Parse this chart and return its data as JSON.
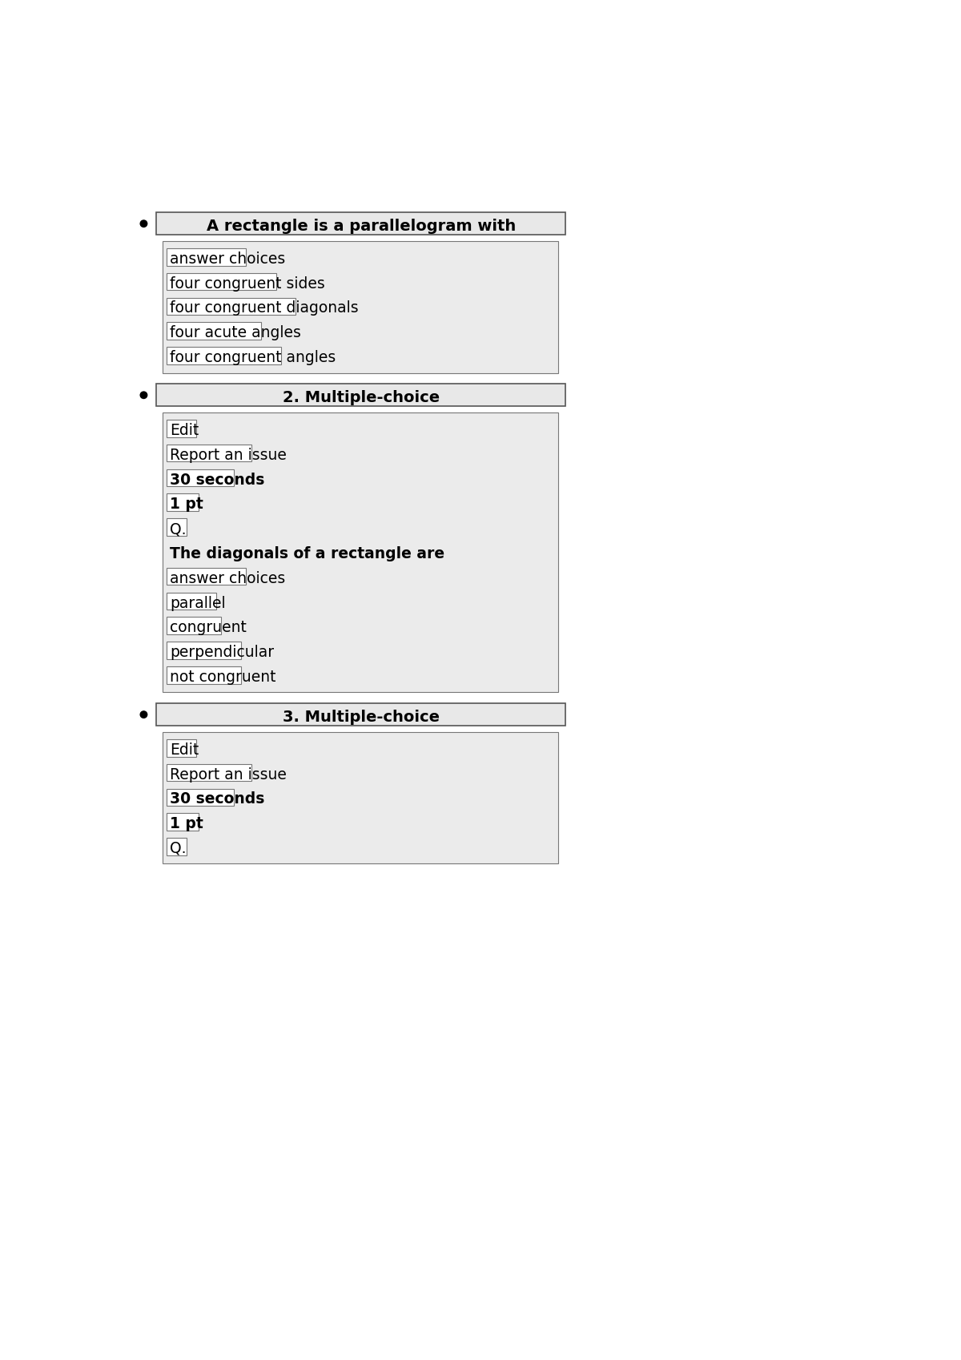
{
  "bg_color": "#ffffff",
  "page_bg": "#ffffff",
  "header_bg": "#e8e8e8",
  "content_bg": "#ebebeb",
  "box_bg": "#ffffff",
  "box_border": "#777777",
  "header_border": "#555555",
  "bullet_color": "#000000",
  "sections": [
    {
      "header": "A rectangle is a parallelogram with",
      "header_bold": true,
      "content_lines": [
        {
          "text": "answer choices",
          "boxed": true,
          "bold": false
        },
        {
          "text": "four congruent sides",
          "boxed": true,
          "bold": false
        },
        {
          "text": "four congruent diagonals",
          "boxed": true,
          "bold": false
        },
        {
          "text": "four acute angles",
          "boxed": true,
          "bold": false
        },
        {
          "text": "four congruent angles",
          "boxed": true,
          "bold": false
        }
      ]
    },
    {
      "header": "2. Multiple-choice",
      "header_bold": true,
      "content_lines": [
        {
          "text": "Edit",
          "boxed": true,
          "bold": false
        },
        {
          "text": "Report an issue",
          "boxed": true,
          "bold": false
        },
        {
          "text": "30 seconds",
          "boxed": true,
          "bold": true
        },
        {
          "text": "1 pt",
          "boxed": true,
          "bold": true
        },
        {
          "text": "Q.",
          "boxed": true,
          "bold": false
        },
        {
          "text": "The diagonals of a rectangle are",
          "boxed": false,
          "bold": true
        },
        {
          "text": "answer choices",
          "boxed": true,
          "bold": false
        },
        {
          "text": "parallel",
          "boxed": true,
          "bold": false
        },
        {
          "text": "congruent",
          "boxed": true,
          "bold": false
        },
        {
          "text": "perpendicular",
          "boxed": true,
          "bold": false
        },
        {
          "text": "not congruent",
          "boxed": true,
          "bold": false
        }
      ]
    },
    {
      "header": "3. Multiple-choice",
      "header_bold": true,
      "content_lines": [
        {
          "text": "Edit",
          "boxed": true,
          "bold": false
        },
        {
          "text": "Report an issue",
          "boxed": true,
          "bold": false
        },
        {
          "text": "30 seconds",
          "boxed": true,
          "bold": true
        },
        {
          "text": "1 pt",
          "boxed": true,
          "bold": true
        },
        {
          "text": "Q.",
          "boxed": true,
          "bold": false
        }
      ]
    }
  ]
}
